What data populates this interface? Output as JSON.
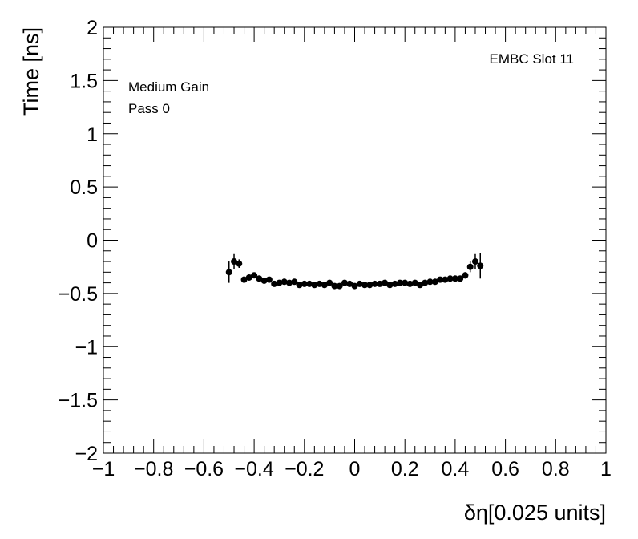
{
  "chart_data": {
    "type": "scatter",
    "title": "",
    "xlabel": "δη[0.025 units]",
    "ylabel": "Time [ns]",
    "xlim": [
      -1,
      1
    ],
    "ylim": [
      -2,
      2
    ],
    "x_ticks": [
      "−1",
      "−0.8",
      "−0.6",
      "−0.4",
      "−0.2",
      "0",
      "0.2",
      "0.4",
      "0.6",
      "0.8",
      "1"
    ],
    "y_ticks": [
      "−2",
      "−1.5",
      "−1",
      "−0.5",
      "0",
      "0.5",
      "1",
      "1.5",
      "2"
    ],
    "grid": false,
    "legend": "none",
    "annotations": {
      "slot": "EMBC Slot 11",
      "gain": "Medium Gain",
      "pass": "Pass 0"
    },
    "series": [
      {
        "x": [
          -0.5,
          -0.48,
          -0.46,
          -0.44,
          -0.42,
          -0.4,
          -0.38,
          -0.36,
          -0.34,
          -0.32,
          -0.3,
          -0.28,
          -0.26,
          -0.24,
          -0.22,
          -0.2,
          -0.18,
          -0.16,
          -0.14,
          -0.12,
          -0.1,
          -0.08,
          -0.06,
          -0.04,
          -0.02,
          0.0,
          0.02,
          0.04,
          0.06,
          0.08,
          0.1,
          0.12,
          0.14,
          0.16,
          0.18,
          0.2,
          0.22,
          0.24,
          0.26,
          0.28,
          0.3,
          0.32,
          0.34,
          0.36,
          0.38,
          0.4,
          0.42,
          0.44,
          0.46,
          0.48,
          0.5
        ],
        "y": [
          -0.3,
          -0.2,
          -0.22,
          -0.37,
          -0.35,
          -0.33,
          -0.36,
          -0.38,
          -0.37,
          -0.41,
          -0.4,
          -0.39,
          -0.4,
          -0.39,
          -0.42,
          -0.41,
          -0.41,
          -0.42,
          -0.41,
          -0.42,
          -0.4,
          -0.43,
          -0.43,
          -0.4,
          -0.41,
          -0.43,
          -0.41,
          -0.42,
          -0.42,
          -0.41,
          -0.41,
          -0.4,
          -0.42,
          -0.41,
          -0.4,
          -0.4,
          -0.41,
          -0.4,
          -0.42,
          -0.4,
          -0.39,
          -0.39,
          -0.37,
          -0.37,
          -0.36,
          -0.36,
          -0.36,
          -0.33,
          -0.25,
          -0.2,
          -0.24
        ],
        "yerr": [
          0.1,
          0.07,
          0.04,
          0.03,
          0.02,
          0.02,
          0.02,
          0.02,
          0.02,
          0.02,
          0.02,
          0.02,
          0.02,
          0.02,
          0.02,
          0.02,
          0.02,
          0.02,
          0.02,
          0.02,
          0.02,
          0.02,
          0.02,
          0.02,
          0.02,
          0.02,
          0.02,
          0.02,
          0.02,
          0.02,
          0.02,
          0.02,
          0.02,
          0.02,
          0.02,
          0.02,
          0.02,
          0.02,
          0.02,
          0.02,
          0.02,
          0.02,
          0.02,
          0.02,
          0.02,
          0.02,
          0.02,
          0.03,
          0.05,
          0.07,
          0.12
        ]
      }
    ]
  }
}
